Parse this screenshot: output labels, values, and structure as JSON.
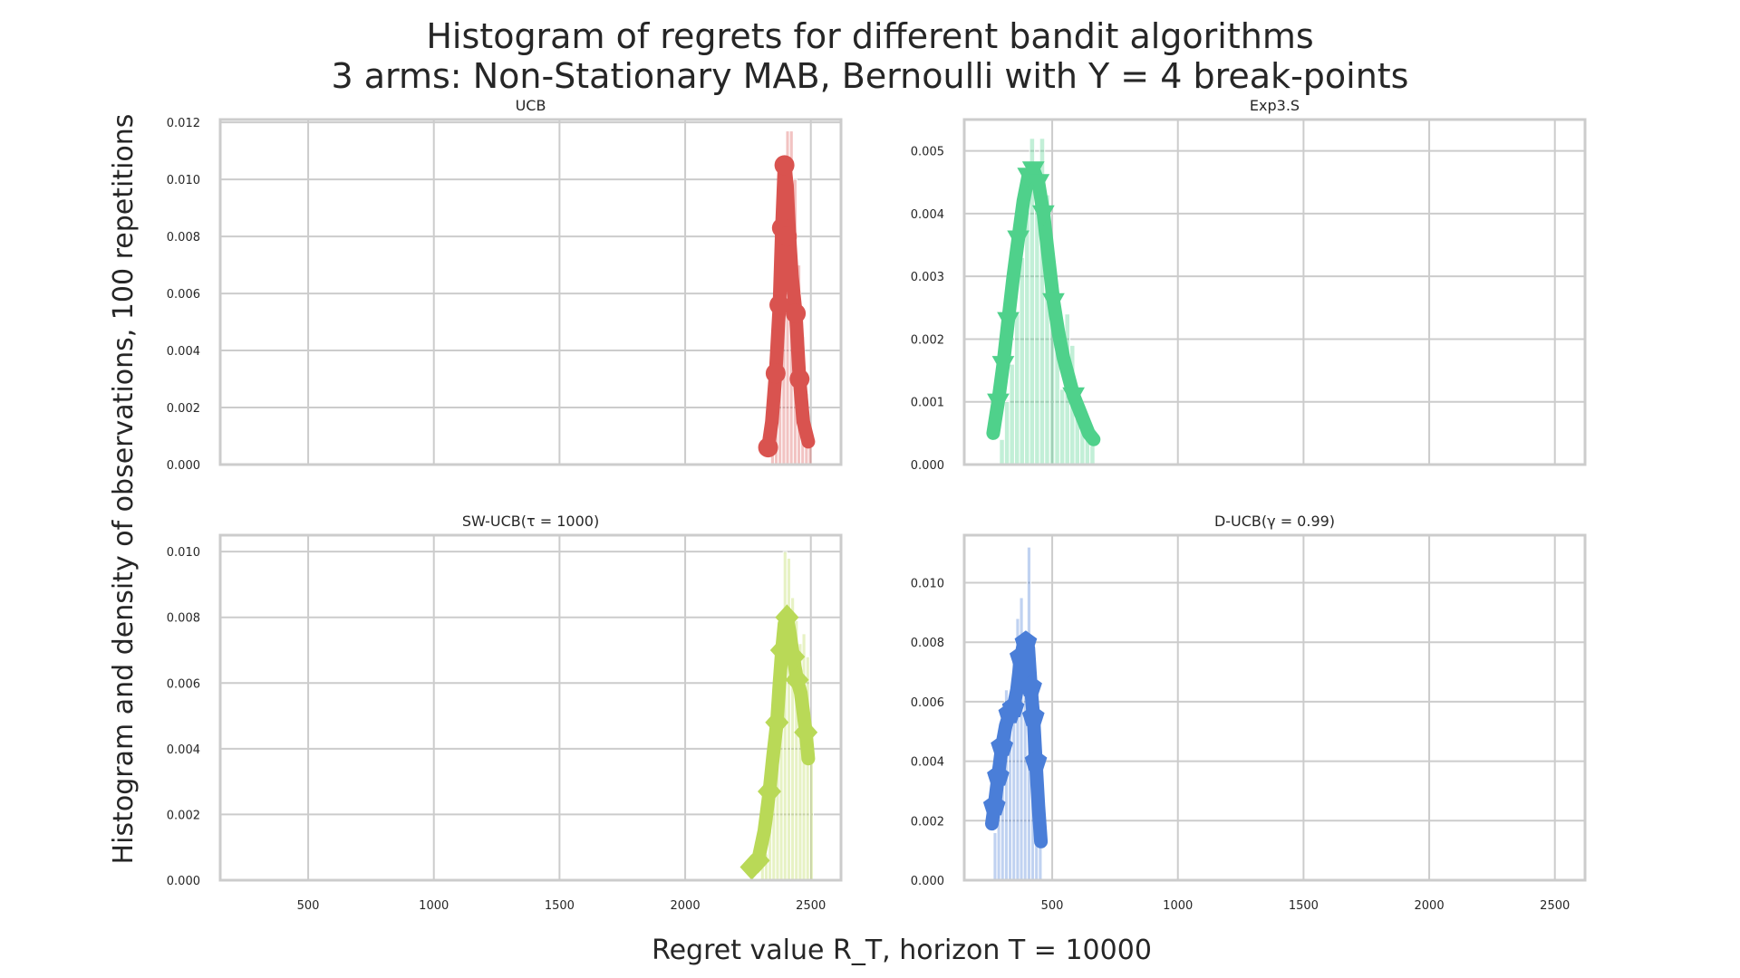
{
  "title_line1": "Histogram of regrets for different bandit algorithms",
  "title_line2": "3 arms: Non-Stationary MAB, Bernoulli with Υ = 4 break-points",
  "xlabel": "Regret value R_T, horizon T = 10000",
  "ylabel": "Histogram and density of observations, 100 repetitions",
  "chart_data": [
    {
      "type": "bar",
      "title": "UCB",
      "color": "#d9534f",
      "marker": "circle",
      "xlim": [
        150,
        2620
      ],
      "ylim": [
        0,
        0.0121
      ],
      "xticks": [
        500,
        1000,
        1500,
        2000,
        2500
      ],
      "xtick_labels": [],
      "yticks": [
        0,
        0.002,
        0.004,
        0.006,
        0.008,
        0.01,
        0.012
      ],
      "ytick_labels": [
        "0.000",
        "0.002",
        "0.004",
        "0.006",
        "0.008",
        "0.010",
        "0.012"
      ],
      "histogram": {
        "bin_edges": [
          2340,
          2355,
          2370,
          2385,
          2400,
          2415,
          2430,
          2445,
          2460,
          2475,
          2490,
          2505
        ],
        "density": [
          0.001,
          0.002,
          0.0045,
          0.008,
          0.0117,
          0.0117,
          0.01,
          0.007,
          0.0045,
          0.0025,
          0.001
        ]
      },
      "density_curve": {
        "x": [
          2330,
          2345,
          2360,
          2375,
          2385,
          2395,
          2405,
          2415,
          2425,
          2440,
          2455,
          2470,
          2490
        ],
        "y": [
          0.0006,
          0.0015,
          0.0032,
          0.0056,
          0.0083,
          0.0105,
          0.0098,
          0.008,
          0.0066,
          0.0053,
          0.003,
          0.0015,
          0.0008
        ]
      },
      "marker_points": {
        "x": [
          2330,
          2360,
          2375,
          2385,
          2395,
          2405,
          2440,
          2455
        ],
        "y": [
          0.0006,
          0.0032,
          0.0056,
          0.0083,
          0.0105,
          0.008,
          0.0053,
          0.003
        ]
      }
    },
    {
      "type": "bar",
      "title": "Exp3.S",
      "color": "#4fd18b",
      "marker": "triangle_down",
      "xlim": [
        150,
        2620
      ],
      "ylim": [
        0,
        0.0055
      ],
      "xticks": [
        500,
        1000,
        1500,
        2000,
        2500
      ],
      "xtick_labels": [],
      "yticks": [
        0,
        0.001,
        0.002,
        0.003,
        0.004,
        0.005
      ],
      "ytick_labels": [
        "0.000",
        "0.001",
        "0.002",
        "0.003",
        "0.004",
        "0.005"
      ],
      "histogram": {
        "bin_edges": [
          290,
          310,
          330,
          350,
          370,
          390,
          410,
          430,
          450,
          470,
          490,
          510,
          530,
          550,
          570,
          590,
          610,
          630,
          650,
          670
        ],
        "density": [
          0.0004,
          0.001,
          0.0016,
          0.0024,
          0.0033,
          0.0041,
          0.0052,
          0.0046,
          0.0052,
          0.0043,
          0.0033,
          0.0027,
          0.0012,
          0.0024,
          0.0019,
          0.001,
          0.0008,
          0.0005,
          0.0003
        ]
      },
      "density_curve": {
        "x": [
          265,
          285,
          305,
          325,
          345,
          365,
          385,
          405,
          425,
          445,
          465,
          485,
          505,
          525,
          545,
          565,
          585,
          605,
          625,
          645,
          665
        ],
        "y": [
          0.0005,
          0.001,
          0.0016,
          0.0023,
          0.003,
          0.0036,
          0.0042,
          0.0046,
          0.0047,
          0.0045,
          0.004,
          0.0033,
          0.0026,
          0.0021,
          0.0017,
          0.0014,
          0.0011,
          0.0009,
          0.0007,
          0.0005,
          0.0004
        ]
      },
      "marker_points": {
        "x": [
          285,
          305,
          325,
          365,
          405,
          425,
          445,
          465,
          505,
          585
        ],
        "y": [
          0.001,
          0.0016,
          0.0023,
          0.0036,
          0.0046,
          0.0047,
          0.0045,
          0.004,
          0.0026,
          0.0011
        ]
      }
    },
    {
      "type": "bar",
      "title": "SW-UCB(τ = 1000)",
      "color": "#b9d957",
      "marker": "diamond",
      "xlim": [
        150,
        2620
      ],
      "ylim": [
        0,
        0.0105
      ],
      "xticks": [
        500,
        1000,
        1500,
        2000,
        2500
      ],
      "xtick_labels": [
        "500",
        "1000",
        "1500",
        "2000",
        "2500"
      ],
      "yticks": [
        0,
        0.002,
        0.004,
        0.006,
        0.008,
        0.01
      ],
      "ytick_labels": [
        "0.000",
        "0.002",
        "0.004",
        "0.006",
        "0.008",
        "0.010"
      ],
      "histogram": {
        "bin_edges": [
          2300,
          2315,
          2330,
          2345,
          2360,
          2375,
          2390,
          2405,
          2420,
          2435,
          2450,
          2465,
          2480,
          2495,
          2510
        ],
        "density": [
          0.0004,
          0.0008,
          0.0015,
          0.0025,
          0.0042,
          0.0062,
          0.01,
          0.0098,
          0.0086,
          0.0079,
          0.0072,
          0.0075,
          0.0068,
          0.0045
        ]
      },
      "density_curve": {
        "x": [
          2265,
          2290,
          2315,
          2335,
          2350,
          2365,
          2375,
          2385,
          2395,
          2405,
          2415,
          2430,
          2445,
          2460,
          2470,
          2480,
          2490
        ],
        "y": [
          0.0004,
          0.0006,
          0.0015,
          0.0027,
          0.0038,
          0.0048,
          0.006,
          0.007,
          0.0078,
          0.008,
          0.0076,
          0.0068,
          0.0061,
          0.0057,
          0.0051,
          0.0045,
          0.0037
        ]
      },
      "marker_points": {
        "x": [
          2265,
          2290,
          2335,
          2365,
          2385,
          2405,
          2430,
          2445,
          2480
        ],
        "y": [
          0.0004,
          0.0006,
          0.0027,
          0.0048,
          0.007,
          0.008,
          0.0068,
          0.0061,
          0.0045
        ]
      }
    },
    {
      "type": "bar",
      "title": "D-UCB(γ = 0.99)",
      "color": "#4a7ed8",
      "marker": "pentagon",
      "xlim": [
        150,
        2620
      ],
      "ylim": [
        0,
        0.0116
      ],
      "xticks": [
        500,
        1000,
        1500,
        2000,
        2500
      ],
      "xtick_labels": [
        "500",
        "1000",
        "1500",
        "2000",
        "2500"
      ],
      "yticks": [
        0,
        0.002,
        0.004,
        0.006,
        0.008,
        0.01
      ],
      "ytick_labels": [
        "0.000",
        "0.002",
        "0.004",
        "0.006",
        "0.008",
        "0.010"
      ],
      "histogram": {
        "bin_edges": [
          265,
          280,
          295,
          310,
          325,
          340,
          355,
          370,
          385,
          400,
          415,
          430,
          445,
          460
        ],
        "density": [
          0.0016,
          0.0032,
          0.0052,
          0.0064,
          0.0055,
          0.0075,
          0.0088,
          0.0095,
          0.007,
          0.0112,
          0.0065,
          0.005,
          0.0018
        ]
      },
      "density_curve": {
        "x": [
          260,
          270,
          285,
          300,
          315,
          330,
          345,
          360,
          375,
          385,
          395,
          405,
          415,
          425,
          435,
          445,
          455
        ],
        "y": [
          0.0019,
          0.0025,
          0.0035,
          0.0045,
          0.0052,
          0.0056,
          0.0058,
          0.0064,
          0.0075,
          0.0079,
          0.008,
          0.0078,
          0.0065,
          0.0055,
          0.004,
          0.0025,
          0.0013
        ]
      },
      "marker_points": {
        "x": [
          270,
          285,
          300,
          330,
          345,
          375,
          395,
          415,
          425,
          435
        ],
        "y": [
          0.0025,
          0.0035,
          0.0045,
          0.0056,
          0.0058,
          0.0075,
          0.008,
          0.0065,
          0.0055,
          0.004
        ]
      }
    }
  ]
}
